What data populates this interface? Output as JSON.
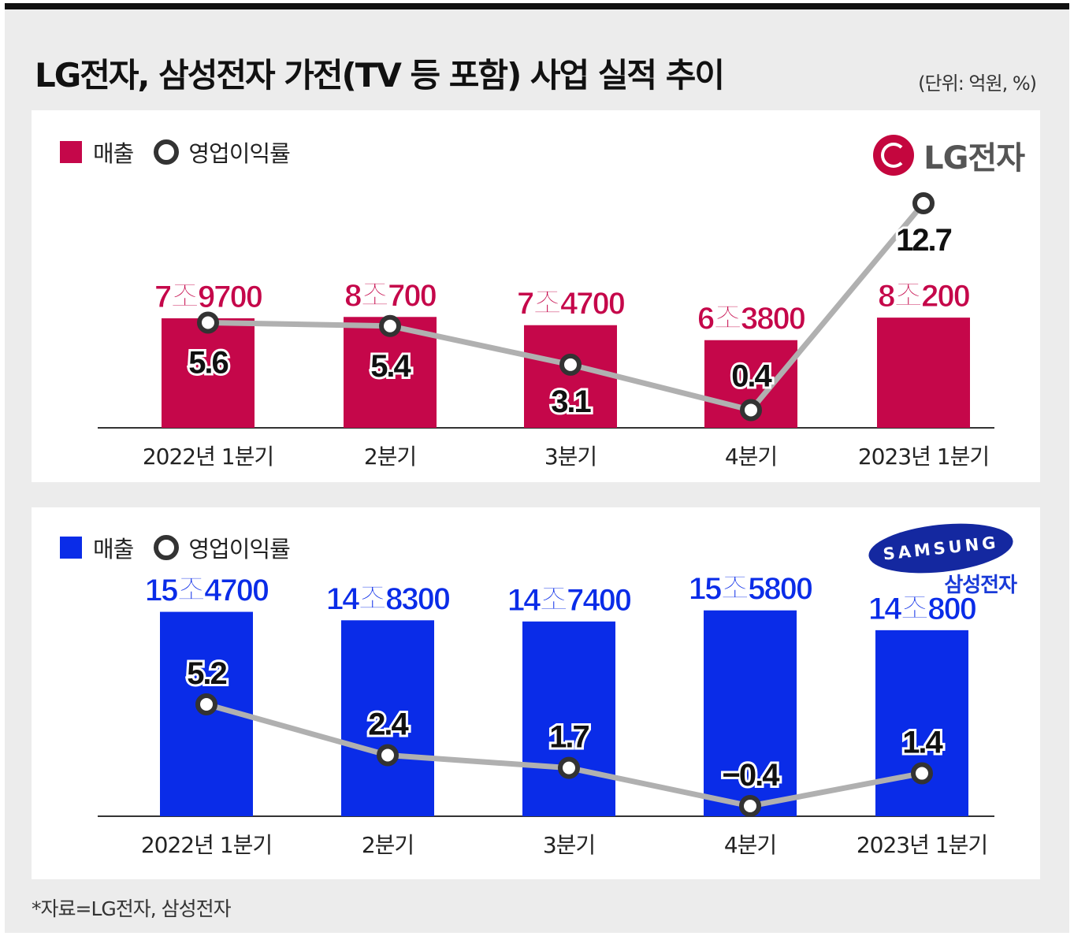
{
  "header": {
    "title": "LG전자, 삼성전자 가전(TV 등 포함) 사업 실적 추이",
    "unit": "(단위: 억원, %)"
  },
  "legend": {
    "revenue": "매출",
    "margin": "영업이익률"
  },
  "source": "*자료=LG전자, 삼성전자",
  "chart_data": [
    {
      "type": "bar",
      "company": "LG전자",
      "categories": [
        "2022년 1분기",
        "2분기",
        "3분기",
        "4분기",
        "2023년 1분기"
      ],
      "series": [
        {
          "name": "매출",
          "values": [
            79700,
            80700,
            74700,
            63800,
            80200
          ],
          "labels": [
            "7조9700",
            "8조700",
            "7조4700",
            "6조3800",
            "8조200"
          ],
          "color": "#c5074a"
        },
        {
          "name": "영업이익률",
          "values": [
            5.6,
            5.4,
            3.1,
            0.4,
            12.7
          ],
          "labels": [
            "5.6",
            "5.4",
            "3.1",
            "0.4",
            "12.7"
          ],
          "color": "#b0b0b0"
        }
      ]
    },
    {
      "type": "bar",
      "company": "삼성전자",
      "categories": [
        "2022년 1분기",
        "2분기",
        "3분기",
        "4분기",
        "2023년 1분기"
      ],
      "series": [
        {
          "name": "매출",
          "values": [
            154700,
            148300,
            147400,
            155800,
            140800
          ],
          "labels": [
            "15조4700",
            "14조8300",
            "14조7400",
            "15조5800",
            "14조800"
          ],
          "color": "#0a2ce8"
        },
        {
          "name": "영업이익률",
          "values": [
            5.2,
            2.4,
            1.7,
            -0.4,
            1.4
          ],
          "labels": [
            "5.2",
            "2.4",
            "1.7",
            "−0.4",
            "1.4"
          ],
          "color": "#b0b0b0"
        }
      ]
    }
  ],
  "logos": {
    "lg": {
      "text": "LG전자",
      "color": "#c4063e"
    },
    "samsung": {
      "wordmark": "SAMSUNG",
      "text": "삼성전자",
      "color": "#1428a0"
    }
  }
}
